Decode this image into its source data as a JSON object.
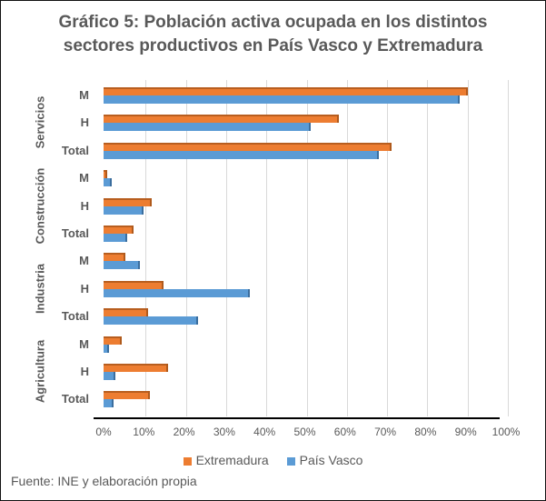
{
  "title_line1": "Gráfico 5: Población activa ocupada en los distintos",
  "title_line2": "sectores productivos  en País Vasco y Extremadura",
  "legend": {
    "extremadura": "Extremadura",
    "pais_vasco": "País Vasco"
  },
  "source": "Fuente: INE y elaboración propia",
  "colors": {
    "extremadura": "#ED7D31",
    "pais_vasco": "#5B9BD5"
  },
  "xticks": [
    "0%",
    "10%",
    "20%",
    "30%",
    "40%",
    "50%",
    "60%",
    "70%",
    "80%",
    "90%",
    "100%"
  ],
  "groups": [
    "Servicios",
    "Construcción",
    "Industria",
    "Agricultura"
  ],
  "chart_data": {
    "type": "bar",
    "orientation": "horizontal",
    "title": "Gráfico 5: Población activa ocupada en los distintos sectores productivos  en País Vasco y Extremadura",
    "xlabel": "",
    "ylabel": "",
    "xlim": [
      0,
      100
    ],
    "x_unit": "%",
    "grid": true,
    "legend_position": "bottom",
    "categories": [
      "Servicios - M",
      "Servicios - H",
      "Servicios - Total",
      "Construcción - M",
      "Construcción - H",
      "Construcción - Total",
      "Industria - M",
      "Industria - H",
      "Industria - Total",
      "Agricultura - M",
      "Agricultura - H",
      "Agricultura - Total"
    ],
    "series": [
      {
        "name": "Extremadura",
        "color": "#ED7D31",
        "values": [
          90,
          58,
          71,
          0.5,
          11.5,
          7,
          5,
          14.5,
          10.5,
          4,
          15.5,
          11
        ]
      },
      {
        "name": "País Vasco",
        "color": "#5B9BD5",
        "values": [
          88,
          51,
          68,
          1.5,
          9.5,
          5.5,
          8.5,
          36,
          23,
          1,
          2.5,
          2
        ]
      }
    ]
  },
  "rows": [
    {
      "label": "M",
      "ext": 90,
      "pv": 88
    },
    {
      "label": "H",
      "ext": 58,
      "pv": 51
    },
    {
      "label": "Total",
      "ext": 71,
      "pv": 68
    },
    {
      "label": "M",
      "ext": 0.5,
      "pv": 1.5
    },
    {
      "label": "H",
      "ext": 11.5,
      "pv": 9.5
    },
    {
      "label": "Total",
      "ext": 7,
      "pv": 5.5
    },
    {
      "label": "M",
      "ext": 5,
      "pv": 8.5
    },
    {
      "label": "H",
      "ext": 14.5,
      "pv": 36
    },
    {
      "label": "Total",
      "ext": 10.5,
      "pv": 23
    },
    {
      "label": "M",
      "ext": 4,
      "pv": 1
    },
    {
      "label": "H",
      "ext": 15.5,
      "pv": 2.5
    },
    {
      "label": "Total",
      "ext": 11,
      "pv": 2
    }
  ]
}
